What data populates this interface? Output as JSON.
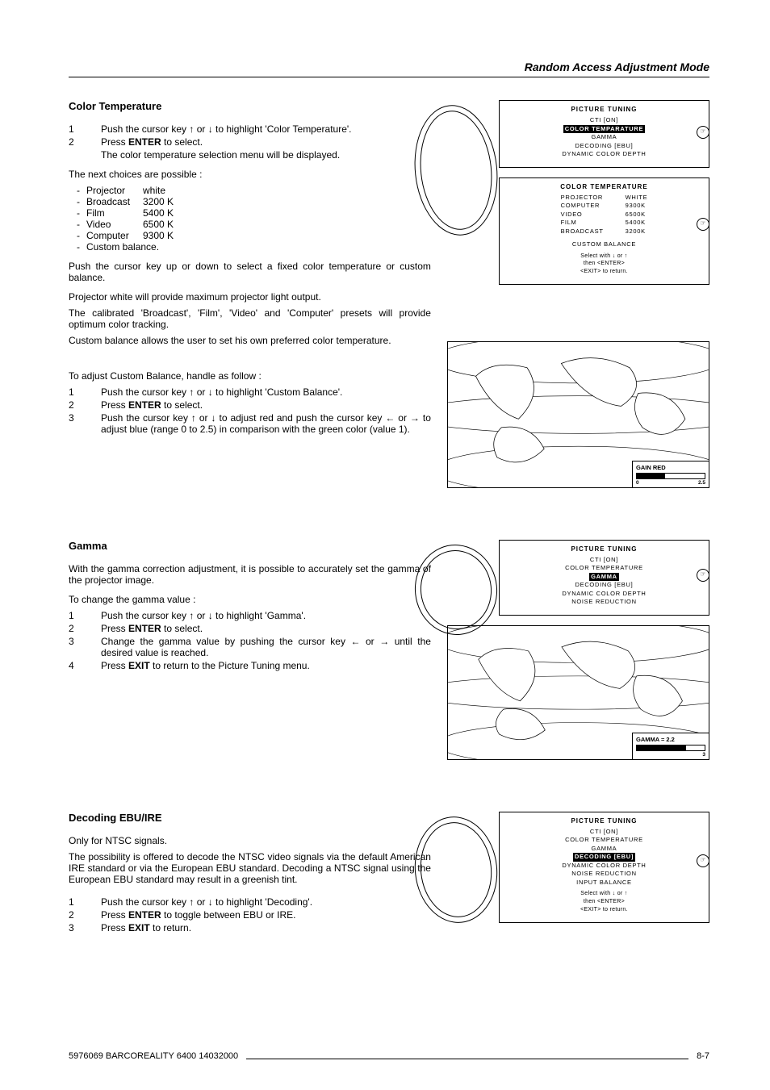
{
  "header": {
    "title": "Random Access Adjustment Mode"
  },
  "section_color_temp": {
    "heading": "Color Temperature",
    "step1": "Push the cursor key ↑ or ↓ to highlight 'Color Temperature'.",
    "step2_a": "Press ",
    "step2_b": "ENTER",
    "step2_c": " to select.",
    "step2_sub": "The color temperature selection menu will be displayed.",
    "next_choices": "The next choices are possible :",
    "choices": [
      {
        "label": "Projector",
        "value": "white"
      },
      {
        "label": "Broadcast",
        "value": "3200 K"
      },
      {
        "label": "Film",
        "value": "5400 K"
      },
      {
        "label": "Video",
        "value": "6500 K"
      },
      {
        "label": "Computer",
        "value": "9300 K"
      },
      {
        "label": "Custom balance.",
        "value": ""
      }
    ],
    "para1": "Push the cursor key up or down to select a fixed color temperature or custom balance.",
    "para2": "Projector white will provide maximum projector light output.",
    "para3": "The calibrated 'Broadcast', 'Film', 'Video' and 'Computer' presets will provide optimum color tracking.",
    "para4": "Custom balance allows the user to set his own preferred color temperature.",
    "adjust_intro": "To adjust Custom Balance, handle as follow :",
    "adj1": "Push the cursor key ↑ or ↓ to highlight 'Custom Balance'.",
    "adj2_a": "Press ",
    "adj2_b": "ENTER",
    "adj2_c": " to select.",
    "adj3": "Push the cursor key ↑ or ↓ to adjust red and push the cursor key ← or → to adjust blue (range 0 to 2.5) in comparison with the green color (value 1)."
  },
  "osd_picture_tuning_1": {
    "title": "PICTURE TUNING",
    "lines": [
      "CTI [ON]",
      {
        "highlight": true,
        "text": "COLOR TEMPARATURE"
      },
      "GAMMA",
      "DECODING [EBU]",
      "DYNAMIC COLOR DEPTH"
    ]
  },
  "osd_color_temp": {
    "title": "COLOR TEMPERATURE",
    "rows": [
      {
        "lab": "PROJECTOR",
        "val": "WHITE"
      },
      {
        "lab": "COMPUTER",
        "val": "9300K"
      },
      {
        "lab": "VIDEO",
        "val": "6500K"
      },
      {
        "lab": "FILM",
        "val": "5400K"
      },
      {
        "lab": "BROADCAST",
        "val": "3200K"
      }
    ],
    "custom": "CUSTOM BALANCE",
    "foot1": "Select with  ↓ or ↑",
    "foot2": "then <ENTER>",
    "foot3": "<EXIT> to return."
  },
  "gain_map": {
    "label": "GAIN RED",
    "min": "0",
    "max": "2.5",
    "fill_pct": 42
  },
  "section_gamma": {
    "heading": "Gamma",
    "intro": "With the gamma correction adjustment, it is possible to accurately set the gamma of the projector image.",
    "change_intro": "To change the gamma value :",
    "s1": "Push the cursor key ↑ or ↓ to highlight 'Gamma'.",
    "s2_a": "Press ",
    "s2_b": "ENTER",
    "s2_c": " to select.",
    "s3": "Change the gamma value by pushing the cursor key ← or → until the desired value is reached.",
    "s4_a": "Press ",
    "s4_b": "EXIT",
    "s4_c": " to return to the Picture Tuning menu."
  },
  "osd_picture_tuning_2": {
    "title": "PICTURE TUNING",
    "lines": [
      "CTI [ON]",
      "COLOR TEMPERATURE",
      {
        "highlight": true,
        "text": "GAMMA"
      },
      "DECODING [EBU]",
      "DYNAMIC COLOR DEPTH",
      "NOISE REDUCTION"
    ]
  },
  "gamma_map": {
    "label": "GAMMA = 2.2",
    "max": "3",
    "fill_pct": 73
  },
  "section_decoding": {
    "heading": "Decoding EBU/IRE",
    "p1": "Only for NTSC signals.",
    "p2": "The possibility is offered to decode the NTSC video signals via the default American IRE standard or via the European EBU standard. Decoding a NTSC signal using the European EBU standard may result in a greenish tint.",
    "s1": "Push the cursor key ↑ or ↓ to highlight 'Decoding'.",
    "s2_a": "Press ",
    "s2_b": "ENTER",
    "s2_c": " to toggle between EBU or IRE.",
    "s3_a": "Press ",
    "s3_b": "EXIT",
    "s3_c": " to return."
  },
  "osd_picture_tuning_3": {
    "title": "PICTURE TUNING",
    "lines": [
      "CTI [ON]",
      "COLOR TEMPERATURE",
      "GAMMA",
      {
        "highlight": true,
        "text": "DECODING [EBU]"
      },
      "DYNAMIC COLOR DEPTH",
      "NOISE REDUCTION",
      "INPUT BALANCE"
    ],
    "foot1": "Select with  ↓  or ↑",
    "foot2": "then <ENTER>",
    "foot3": "<EXIT> to return."
  },
  "footer": {
    "left": "5976069 BARCOREALITY 6400 14032000",
    "right": "8-7"
  },
  "style": {
    "text_color": "#000000",
    "page_bg": "#ffffff",
    "highlight_bg": "#000000",
    "highlight_fg": "#ffffff"
  }
}
